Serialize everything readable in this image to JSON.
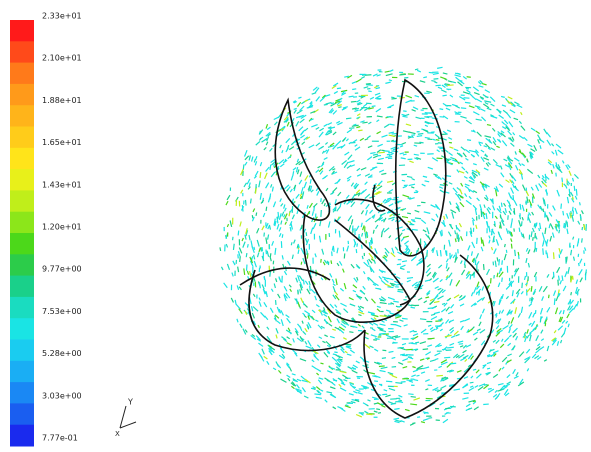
{
  "colorbar": {
    "labels": [
      "2.33e+01",
      "2.10e+01",
      "1.88e+01",
      "1.65e+01",
      "1.43e+01",
      "1.20e+01",
      "9.77e+00",
      "7.53e+00",
      "5.28e+00",
      "3.03e+00",
      "7.77e-01"
    ],
    "colors": [
      "#ff1a1a",
      "#ff4a1a",
      "#ff7a1a",
      "#ff9a1a",
      "#ffb41a",
      "#ffcc1a",
      "#ffe41a",
      "#e8f01a",
      "#c0ee1a",
      "#8ce61a",
      "#4cd81a",
      "#2ccc4a",
      "#1ad08a",
      "#1adcc0",
      "#1ae4e4",
      "#1accf0",
      "#1aaef4",
      "#1a88f4",
      "#1a5ef0",
      "#1a2aee"
    ]
  },
  "axes_triad": {
    "y": "Y",
    "x": "X"
  }
}
